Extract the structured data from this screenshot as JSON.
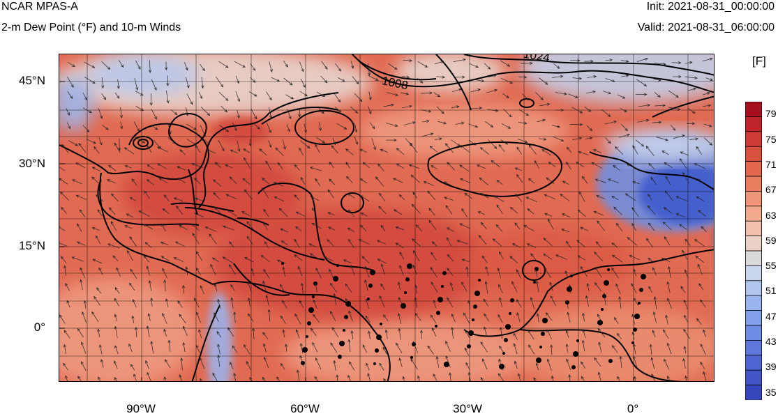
{
  "header": {
    "model": "NCAR MPAS-A",
    "field": "2-m Dew Point (°F) and 10-m Winds",
    "init": "Init: 2021-08-31_00:00:00",
    "valid": "Valid: 2021-08-31_06:00:00"
  },
  "map": {
    "lat_labels": [
      "45°N",
      "30°N",
      "15°N",
      "0°"
    ],
    "lon_labels": [
      "90°W",
      "60°W",
      "30°W",
      "0°"
    ],
    "isobar_labels": [
      "1008",
      "1024"
    ],
    "field_colors": {
      "moist": "#e06a52",
      "very_moist": "#d24a3c",
      "moderate": "#ee9a80",
      "dry": "#6f8fe0",
      "very_dry": "#3f5ccc",
      "neutral": "#e8d6cf"
    }
  },
  "colorbar": {
    "unit": "[F]",
    "labels": [
      "79",
      "75",
      "71",
      "67",
      "63",
      "59",
      "55",
      "51",
      "47",
      "43",
      "39",
      "35"
    ],
    "colors": [
      "#a80f1e",
      "#c0242b",
      "#cf3a34",
      "#d9503f",
      "#e2674e",
      "#ea7d60",
      "#ef9476",
      "#f2aa8f",
      "#f1bfaa",
      "#ecd2c6",
      "#dcd9dc",
      "#c8d5ec",
      "#b1c6ef",
      "#99b4ef",
      "#829fea",
      "#6e8be3",
      "#5d77da",
      "#4e64d0",
      "#4254c6",
      "#3746bb"
    ]
  }
}
